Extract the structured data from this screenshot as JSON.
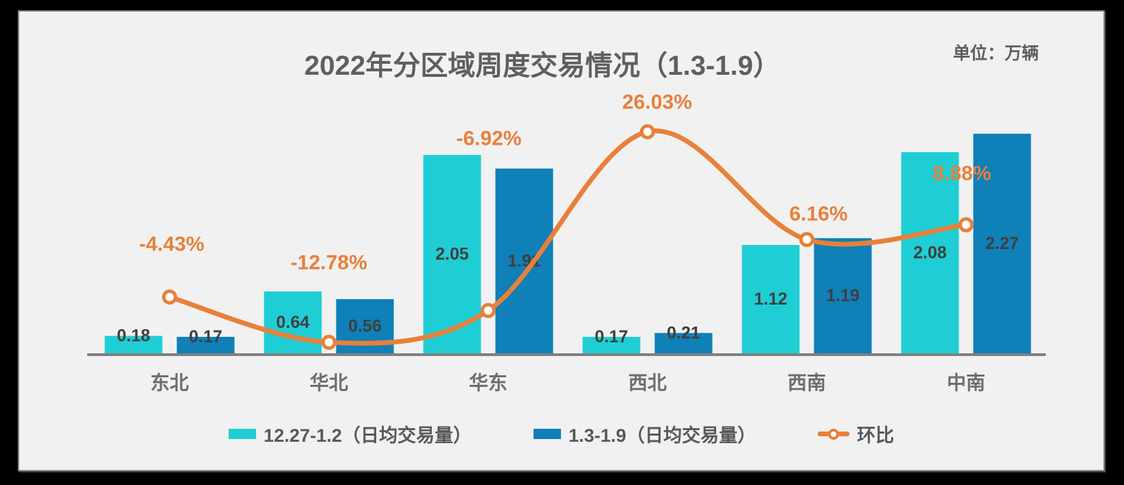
{
  "chart_data": {
    "type": "bar+line",
    "title": "2022年分区域周度交易情况（1.3-1.9）",
    "unit_note": "单位：万辆",
    "categories": [
      "东北",
      "华北",
      "华东",
      "西北",
      "西南",
      "中南"
    ],
    "series": [
      {
        "name": "12.27-1.2（日均交易量）",
        "type": "bar",
        "color": "#1FCED4",
        "values": [
          0.18,
          0.64,
          2.05,
          0.17,
          1.12,
          2.08
        ],
        "labels": [
          "0.18",
          "0.64",
          "2.05",
          "0.17",
          "1.12",
          "2.08"
        ]
      },
      {
        "name": "1.3-1.9（日均交易量）",
        "type": "bar",
        "color": "#0F80B8",
        "values": [
          0.17,
          0.56,
          1.91,
          0.21,
          1.19,
          2.27
        ],
        "labels": [
          "0.17",
          "0.56",
          "1.91",
          "0.21",
          "1.19",
          "2.27"
        ]
      },
      {
        "name": "环比",
        "type": "line",
        "color": "#E8803A",
        "values": [
          -4.43,
          -12.78,
          -6.92,
          26.03,
          6.16,
          8.88
        ],
        "labels": [
          "-4.43%",
          "-12.78%",
          "-6.92%",
          "26.03%",
          "6.16%",
          "8.88%"
        ]
      }
    ],
    "layout_hints": {
      "legend_position": "bottom",
      "grid": false,
      "value_axes_hidden": true,
      "background": "#F1F1F1",
      "axis_line_color": "#7F7F7F",
      "bar_label_color": "#3F3F3F",
      "category_label_color": "#6D6D6D",
      "heading_color": "#5F5F5F"
    }
  }
}
